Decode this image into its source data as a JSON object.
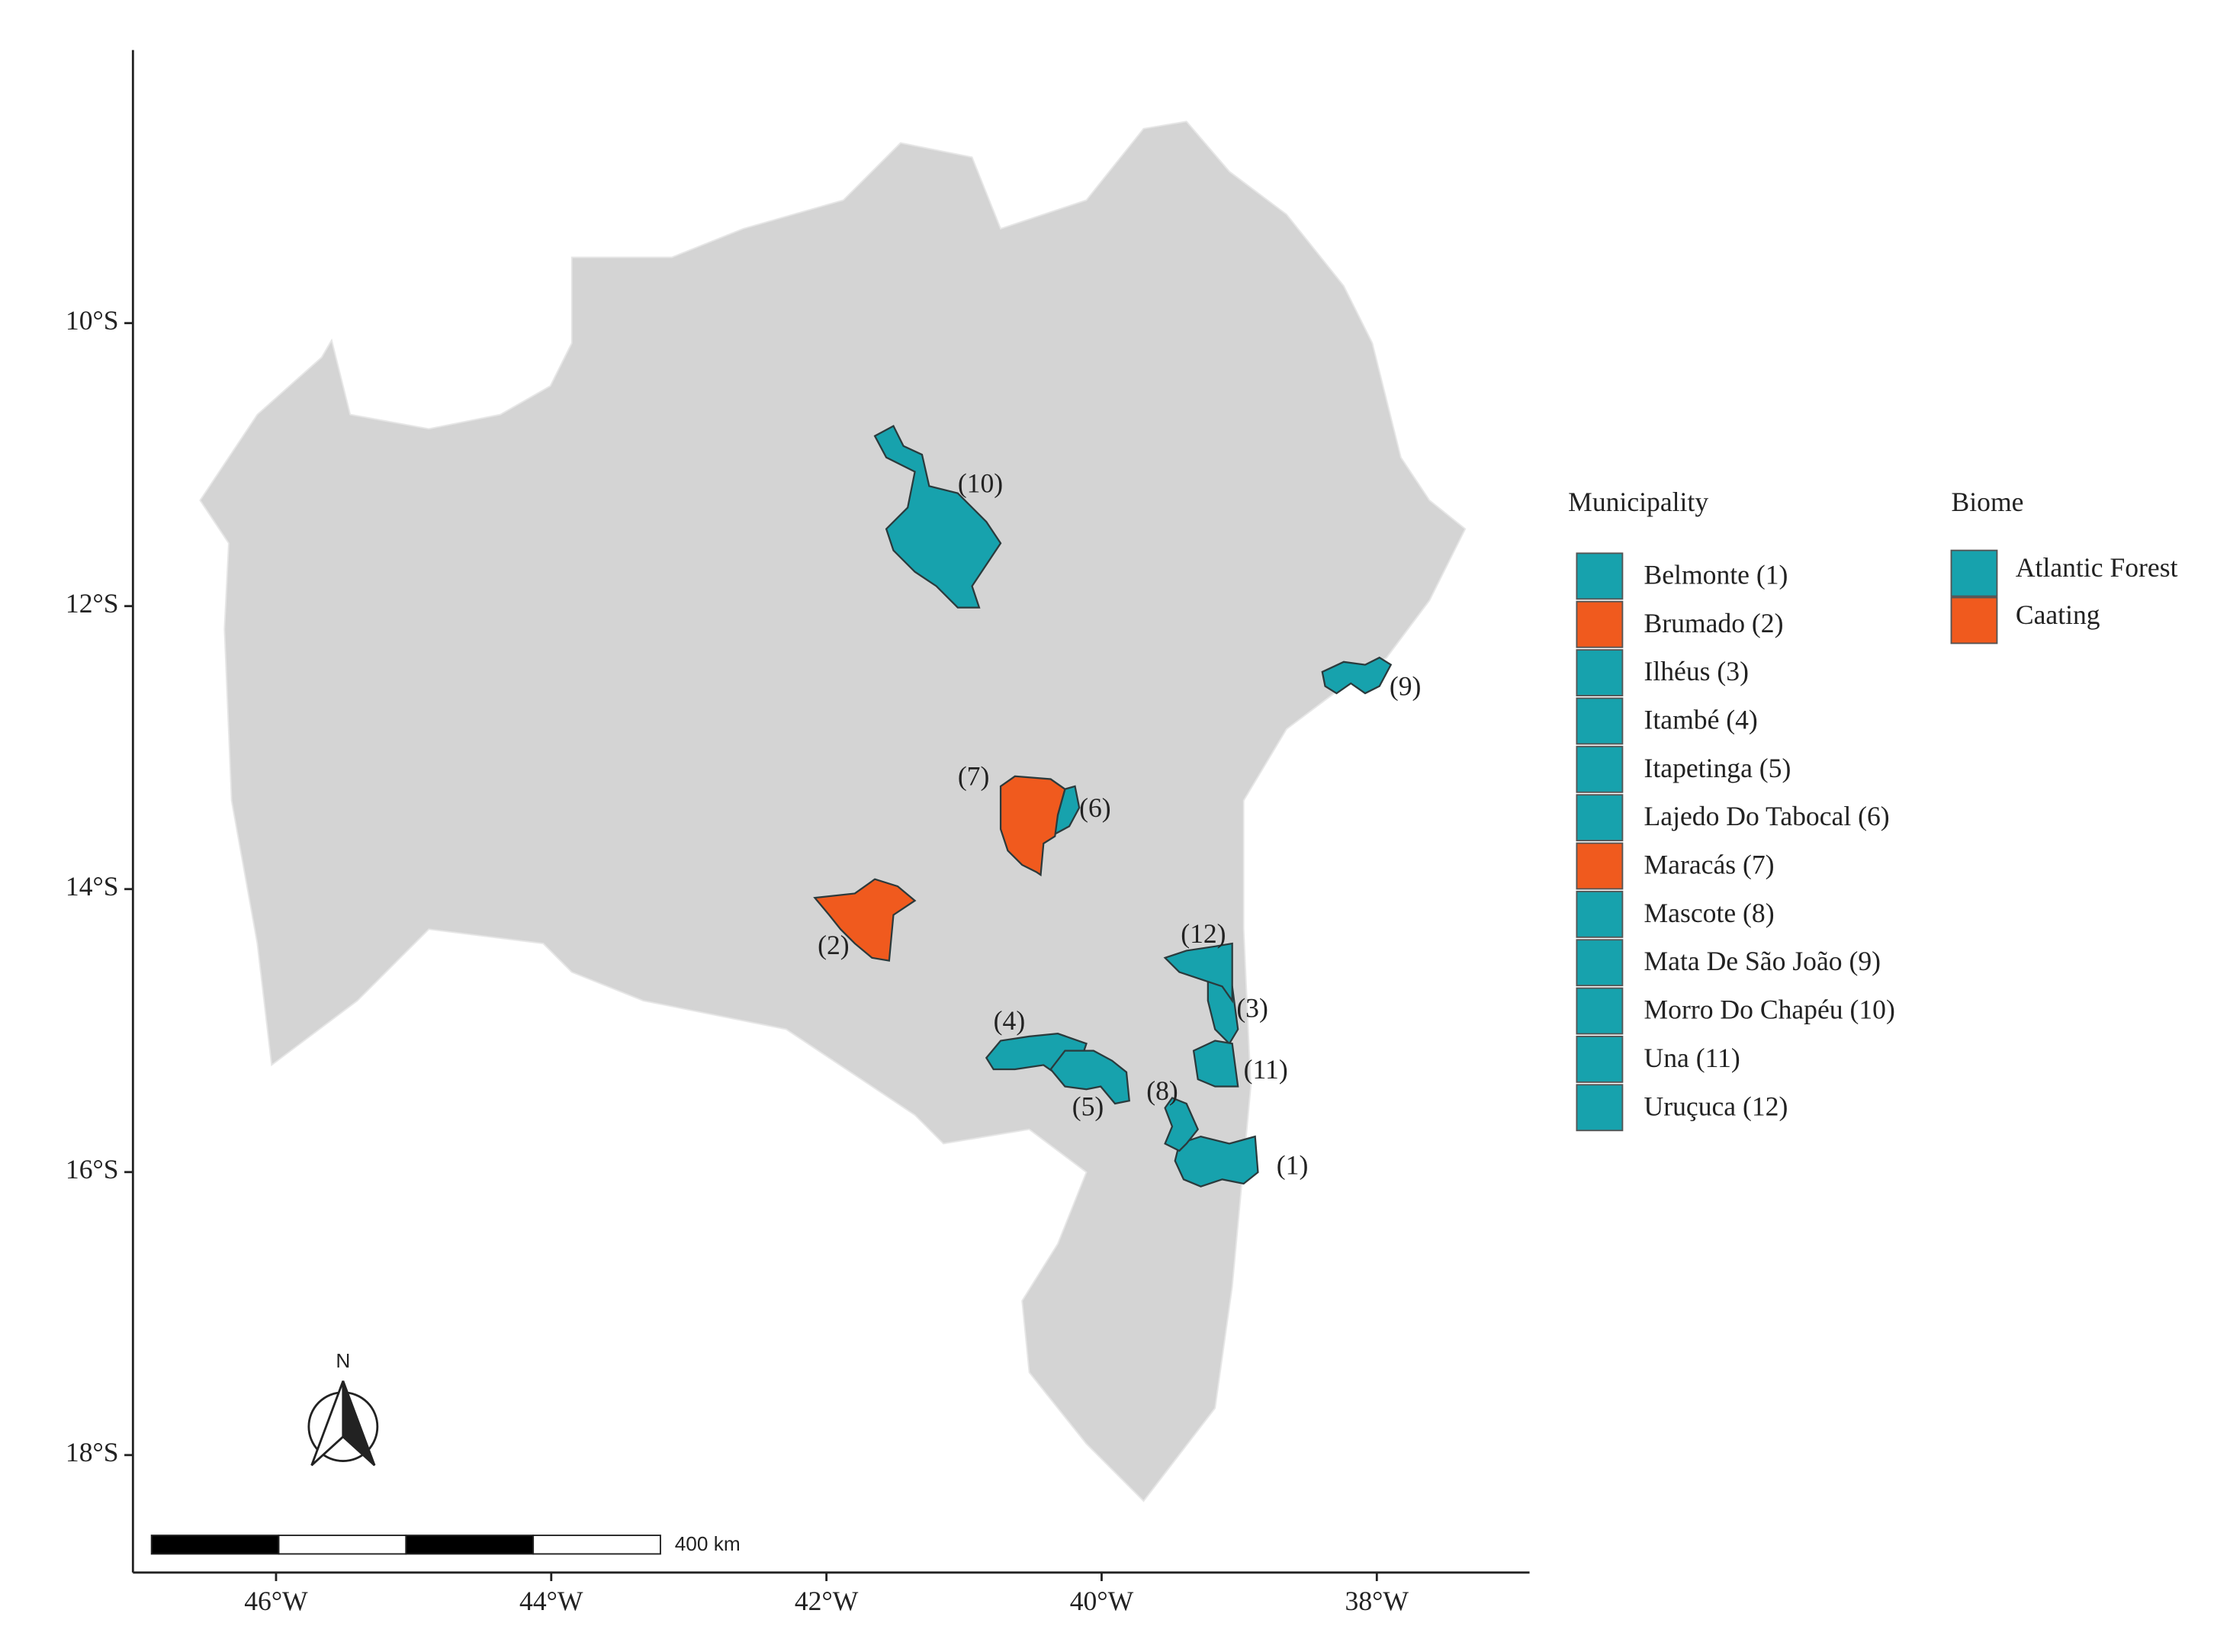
{
  "map": {
    "xlim": [
      -47.04,
      -36.89
    ],
    "ylim": [
      -18.83,
      -8.07
    ],
    "xticks": [
      {
        "value": -46,
        "label": "46°W"
      },
      {
        "value": -44,
        "label": "44°W"
      },
      {
        "value": -42,
        "label": "42°W"
      },
      {
        "value": -40,
        "label": "40°W"
      },
      {
        "value": -38,
        "label": "38°W"
      }
    ],
    "yticks": [
      {
        "value": -10,
        "label": "10°S"
      },
      {
        "value": -12,
        "label": "12°S"
      },
      {
        "value": -14,
        "label": "14°S"
      },
      {
        "value": -16,
        "label": "16°S"
      },
      {
        "value": -18,
        "label": "18°S"
      }
    ],
    "region_labels": [
      "(1)",
      "(2)",
      "(3)",
      "(4)",
      "(5)",
      "(6)",
      "(7)",
      "(8)",
      "(9)",
      "(10)",
      "(11)",
      "(12)"
    ],
    "north": "N",
    "scale_bar": "400 km"
  },
  "legend": {
    "municipality_title": "Municipality",
    "municipalities": [
      {
        "label": "Belmonte  (1)",
        "biome": "Atlantic Forest"
      },
      {
        "label": "Brumado (2)",
        "biome": "Caating"
      },
      {
        "label": "Ilhéus (3)",
        "biome": "Atlantic Forest"
      },
      {
        "label": "Itambé  (4)",
        "biome": "Atlantic Forest"
      },
      {
        "label": "Itapetinga  (5)",
        "biome": "Atlantic Forest"
      },
      {
        "label": "Lajedo Do Tabocal (6)",
        "biome": "Atlantic Forest"
      },
      {
        "label": "Maracás (7)",
        "biome": "Caating"
      },
      {
        "label": "Mascote (8)",
        "biome": "Atlantic Forest"
      },
      {
        "label": "Mata De São João (9)",
        "biome": "Atlantic Forest"
      },
      {
        "label": "Morro Do Chapéu  (10)",
        "biome": "Atlantic Forest"
      },
      {
        "label": "Una (11)",
        "biome": "Atlantic Forest"
      },
      {
        "label": "Uruçuca (12)",
        "biome": "Atlantic Forest"
      }
    ],
    "biome_title": "Biome",
    "biomes": [
      {
        "name": "Atlantic Forest",
        "color": "#17a2ad"
      },
      {
        "name": "Caating",
        "color": "#f05a1e"
      }
    ]
  }
}
